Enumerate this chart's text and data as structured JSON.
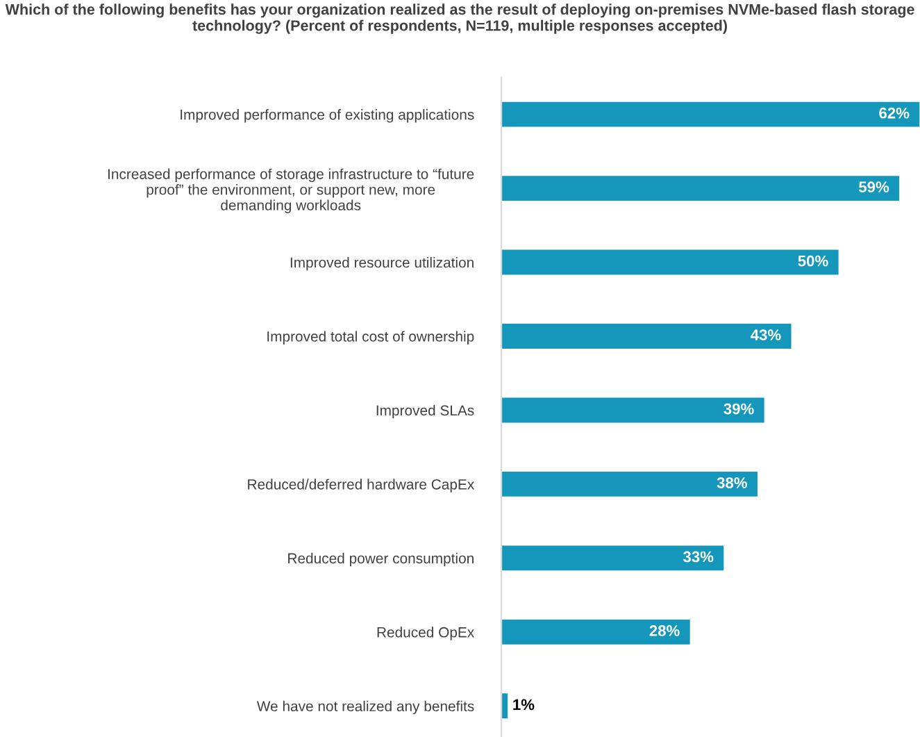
{
  "chart_data": {
    "type": "bar",
    "orientation": "horizontal",
    "title": "Which of the following benefits has your organization realized as the result of deploying on-premises NVMe-based flash storage technology? (Percent of respondents, N=119, multiple responses accepted)",
    "categories": [
      "Improved performance of existing applications",
      "Increased performance of storage infrastructure to “future\nproof” the environment, or support new, more\ndemanding workloads",
      "Improved resource utilization",
      "Improved total cost of ownership",
      "Improved SLAs",
      "Reduced/deferred hardware CapEx",
      "Reduced power consumption",
      "Reduced OpEx",
      "We have not realized any benefits"
    ],
    "values": [
      62,
      59,
      50,
      43,
      39,
      38,
      33,
      28,
      1
    ],
    "value_labels": [
      "62%",
      "59%",
      "50%",
      "43%",
      "39%",
      "38%",
      "33%",
      "28%",
      "1%"
    ],
    "color": "#1497bb",
    "grid": false,
    "legend": false
  }
}
